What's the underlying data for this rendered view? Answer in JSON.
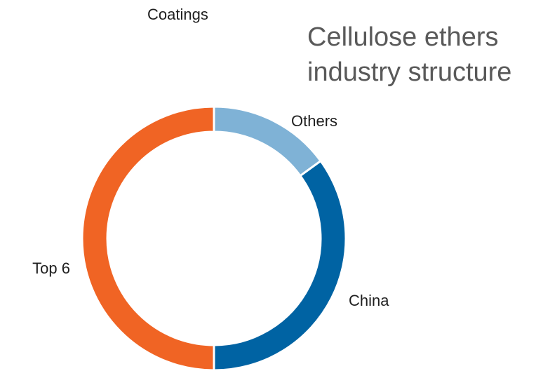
{
  "chart_data": {
    "type": "pie",
    "variant": "donut",
    "title_lines": [
      "Cellulose ethers",
      "industry structure"
    ],
    "top_label": "Coatings",
    "categories": [
      "Others",
      "China",
      "Top 6"
    ],
    "values": [
      15,
      35,
      50
    ],
    "unit": "%",
    "colors": [
      "#7fb2d6",
      "#0063a3",
      "#f06424"
    ],
    "legend": "none",
    "start_angle_deg": 0,
    "direction": "clockwise"
  }
}
